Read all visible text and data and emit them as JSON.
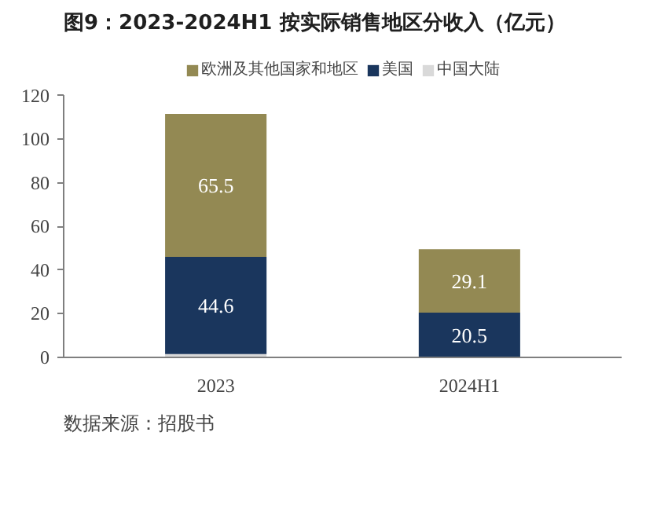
{
  "chart_data": {
    "type": "bar",
    "title": "图9：2023-2024H1 按实际销售地区分收入（亿元）",
    "categories": [
      "2023",
      "2024H1"
    ],
    "stacked": true,
    "ylim": [
      0,
      120
    ],
    "yticks": [
      0,
      20,
      40,
      60,
      80,
      100,
      120
    ],
    "grid": false,
    "legend": "top",
    "annotations": [
      "数据来源：招股书"
    ],
    "series": [
      {
        "name": "中国大陆",
        "color": "#d9d9d9",
        "values": [
          1.5,
          null
        ],
        "value_labels": [
          null,
          null
        ]
      },
      {
        "name": "美国",
        "color": "#1a365d",
        "values": [
          44.6,
          20.5
        ],
        "value_labels": [
          "44.6",
          "20.5"
        ]
      },
      {
        "name": "欧洲及其他国家和地区",
        "color": "#938953",
        "values": [
          65.5,
          29.1
        ],
        "value_labels": [
          "65.5",
          "29.1"
        ]
      }
    ]
  }
}
